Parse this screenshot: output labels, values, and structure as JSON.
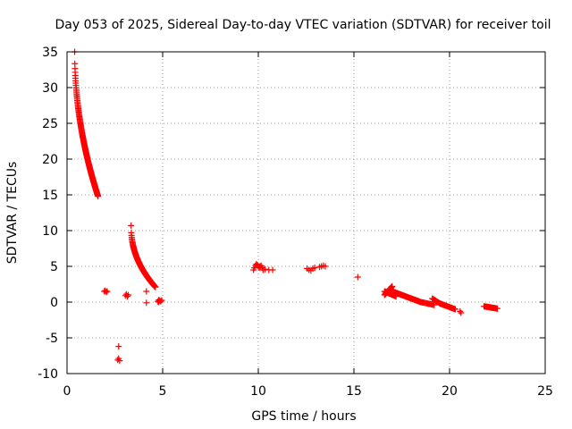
{
  "chart_data": {
    "type": "scatter",
    "title": "Day 053 of 2025, Sidereal Day-to-day VTEC variation (SDTVAR) for receiver toil",
    "xlabel": "GPS time / hours",
    "ylabel": "SDTVAR / TECUs",
    "xlim": [
      0,
      25
    ],
    "ylim": [
      -10,
      35
    ],
    "xticks": [
      0,
      5,
      10,
      15,
      20,
      25
    ],
    "yticks": [
      -10,
      -5,
      0,
      5,
      10,
      15,
      20,
      25,
      30,
      35
    ],
    "grid": true,
    "marker": "+",
    "series": [
      {
        "name": "SDTVAR",
        "color": "#ff0000",
        "segments": [
          {
            "x": [
              0.4,
              1.62
            ],
            "y": [
              35.0,
              14.8
            ],
            "n": 150,
            "curve": 0.5
          },
          {
            "x": [
              3.35,
              4.62
            ],
            "y": [
              10.7,
              2.1
            ],
            "n": 120,
            "curve": 0.45
          },
          {
            "x": [
              16.6,
              17.0
            ],
            "y": [
              1.0,
              2.2
            ],
            "n": 20,
            "curve": 1.0
          },
          {
            "x": [
              16.6,
              17.2
            ],
            "y": [
              1.5,
              0.8
            ],
            "n": 20,
            "curve": 1.0
          },
          {
            "x": [
              17.0,
              18.5
            ],
            "y": [
              1.5,
              0.0
            ],
            "n": 45,
            "curve": 1.0
          },
          {
            "x": [
              18.5,
              19.2
            ],
            "y": [
              0.0,
              -0.4
            ],
            "n": 15,
            "curve": 1.0
          },
          {
            "x": [
              19.1,
              19.5
            ],
            "y": [
              0.5,
              -0.2
            ],
            "n": 10,
            "curve": 1.0
          },
          {
            "x": [
              19.5,
              20.3
            ],
            "y": [
              -0.2,
              -1.0
            ],
            "n": 20,
            "curve": 1.0
          },
          {
            "x": [
              21.8,
              22.5
            ],
            "y": [
              -0.6,
              -0.9
            ],
            "n": 20,
            "curve": 1.0
          }
        ],
        "points": [
          [
            1.95,
            1.5
          ],
          [
            2.0,
            1.6
          ],
          [
            2.05,
            1.4
          ],
          [
            2.1,
            1.5
          ],
          [
            3.05,
            0.9
          ],
          [
            3.1,
            1.1
          ],
          [
            3.15,
            0.8
          ],
          [
            3.2,
            1.0
          ],
          [
            2.65,
            -8.1
          ],
          [
            2.7,
            -7.9
          ],
          [
            2.75,
            -8.2
          ],
          [
            2.7,
            -6.2
          ],
          [
            4.15,
            1.5
          ],
          [
            4.15,
            -0.1
          ],
          [
            4.75,
            0.1
          ],
          [
            4.8,
            0.3
          ],
          [
            4.85,
            0.2
          ],
          [
            4.9,
            0.1
          ],
          [
            4.95,
            0.25
          ],
          [
            4.8,
            0.0
          ],
          [
            9.75,
            4.5
          ],
          [
            9.8,
            4.8
          ],
          [
            9.85,
            5.1
          ],
          [
            9.9,
            5.3
          ],
          [
            9.95,
            5.2
          ],
          [
            10.0,
            5.0
          ],
          [
            10.05,
            4.8
          ],
          [
            10.1,
            5.0
          ],
          [
            10.15,
            5.1
          ],
          [
            10.2,
            4.8
          ],
          [
            10.25,
            4.5
          ],
          [
            10.35,
            4.6
          ],
          [
            10.55,
            4.5
          ],
          [
            10.75,
            4.5
          ],
          [
            12.55,
            4.7
          ],
          [
            12.65,
            4.5
          ],
          [
            12.75,
            4.4
          ],
          [
            12.85,
            4.7
          ],
          [
            12.95,
            4.8
          ],
          [
            13.2,
            4.9
          ],
          [
            13.3,
            5.0
          ],
          [
            13.4,
            5.1
          ],
          [
            13.5,
            5.0
          ],
          [
            15.2,
            3.5
          ],
          [
            20.55,
            -1.3
          ],
          [
            20.6,
            -1.5
          ]
        ]
      }
    ]
  }
}
